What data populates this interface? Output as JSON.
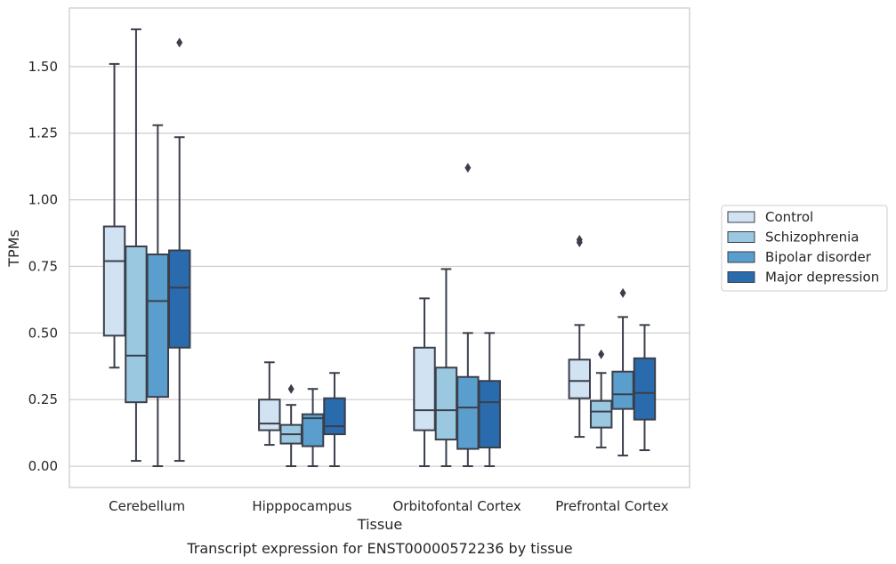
{
  "chart_data": {
    "type": "box",
    "caption": "Transcript expression for ENST00000572236 by tissue",
    "xlabel": "Tissue",
    "ylabel": "TPMs",
    "ylim": [
      -0.08,
      1.72
    ],
    "yticks": [
      0.0,
      0.25,
      0.5,
      0.75,
      1.0,
      1.25,
      1.5
    ],
    "ytick_labels": [
      "0.00",
      "0.25",
      "0.50",
      "0.75",
      "1.00",
      "1.25",
      "1.50"
    ],
    "grid": "horizontal",
    "legend_position": "right",
    "categories": [
      "Cerebellum",
      "Hipppocampus",
      "Orbitofontal Cortex",
      "Prefrontal Cortex"
    ],
    "series": [
      {
        "name": "Control",
        "color": "#d1e2f2",
        "boxes": [
          {
            "whisker_low": 0.37,
            "q1": 0.49,
            "median": 0.77,
            "q3": 0.9,
            "whisker_high": 1.51,
            "outliers": []
          },
          {
            "whisker_low": 0.08,
            "q1": 0.135,
            "median": 0.16,
            "q3": 0.25,
            "whisker_high": 0.39,
            "outliers": []
          },
          {
            "whisker_low": 0.0,
            "q1": 0.135,
            "median": 0.21,
            "q3": 0.445,
            "whisker_high": 0.63,
            "outliers": []
          },
          {
            "whisker_low": 0.11,
            "q1": 0.255,
            "median": 0.32,
            "q3": 0.4,
            "whisker_high": 0.53,
            "outliers": [
              0.84,
              0.85
            ]
          }
        ]
      },
      {
        "name": "Schizophrenia",
        "color": "#9ac8e0",
        "boxes": [
          {
            "whisker_low": 0.02,
            "q1": 0.24,
            "median": 0.415,
            "q3": 0.825,
            "whisker_high": 1.64,
            "outliers": []
          },
          {
            "whisker_low": 0.0,
            "q1": 0.085,
            "median": 0.12,
            "q3": 0.155,
            "whisker_high": 0.23,
            "outliers": [
              0.29
            ]
          },
          {
            "whisker_low": 0.0,
            "q1": 0.1,
            "median": 0.21,
            "q3": 0.37,
            "whisker_high": 0.74,
            "outliers": []
          },
          {
            "whisker_low": 0.07,
            "q1": 0.145,
            "median": 0.205,
            "q3": 0.245,
            "whisker_high": 0.35,
            "outliers": [
              0.42
            ]
          }
        ]
      },
      {
        "name": "Bipolar disorder",
        "color": "#5a9ecd",
        "boxes": [
          {
            "whisker_low": 0.0,
            "q1": 0.26,
            "median": 0.62,
            "q3": 0.795,
            "whisker_high": 1.28,
            "outliers": []
          },
          {
            "whisker_low": 0.0,
            "q1": 0.075,
            "median": 0.18,
            "q3": 0.195,
            "whisker_high": 0.29,
            "outliers": []
          },
          {
            "whisker_low": 0.0,
            "q1": 0.065,
            "median": 0.22,
            "q3": 0.335,
            "whisker_high": 0.5,
            "outliers": [
              1.12
            ]
          },
          {
            "whisker_low": 0.04,
            "q1": 0.215,
            "median": 0.27,
            "q3": 0.355,
            "whisker_high": 0.56,
            "outliers": [
              0.65
            ]
          }
        ]
      },
      {
        "name": "Major depression",
        "color": "#2a6bad",
        "boxes": [
          {
            "whisker_low": 0.02,
            "q1": 0.445,
            "median": 0.67,
            "q3": 0.81,
            "whisker_high": 1.235,
            "outliers": [
              1.59
            ]
          },
          {
            "whisker_low": 0.0,
            "q1": 0.12,
            "median": 0.15,
            "q3": 0.255,
            "whisker_high": 0.35,
            "outliers": []
          },
          {
            "whisker_low": 0.0,
            "q1": 0.07,
            "median": 0.24,
            "q3": 0.32,
            "whisker_high": 0.5,
            "outliers": []
          },
          {
            "whisker_low": 0.06,
            "q1": 0.175,
            "median": 0.275,
            "q3": 0.405,
            "whisker_high": 0.53,
            "outliers": []
          }
        ]
      }
    ]
  }
}
